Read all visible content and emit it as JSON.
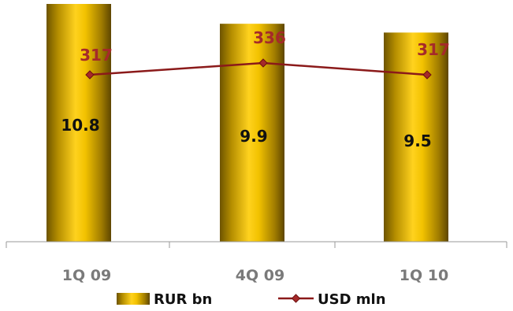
{
  "chart_data": {
    "type": "bar",
    "categories": [
      "1Q 09",
      "4Q 09",
      "1Q 10"
    ],
    "series": [
      {
        "name": "RUR bn",
        "kind": "bar",
        "values": [
          10.8,
          9.9,
          9.5
        ],
        "labels": [
          "10.8",
          "9.9",
          "9.5"
        ],
        "color": "#D4A800"
      },
      {
        "name": "USD mln",
        "kind": "line",
        "values": [
          317,
          336,
          317
        ],
        "labels": [
          "317",
          "336",
          "317"
        ],
        "color": "#8B1A1A"
      }
    ],
    "legend": {
      "position": "bottom",
      "items": [
        "RUR bn",
        "USD mln"
      ]
    },
    "grid": false,
    "colors": {
      "bar_gold": "#D4A800",
      "bar_highlight": "#FFE34A",
      "line_dark_red": "#8B1A1A",
      "label_red": "#A52A2A",
      "tick_gray": "#7a7a7a"
    }
  }
}
